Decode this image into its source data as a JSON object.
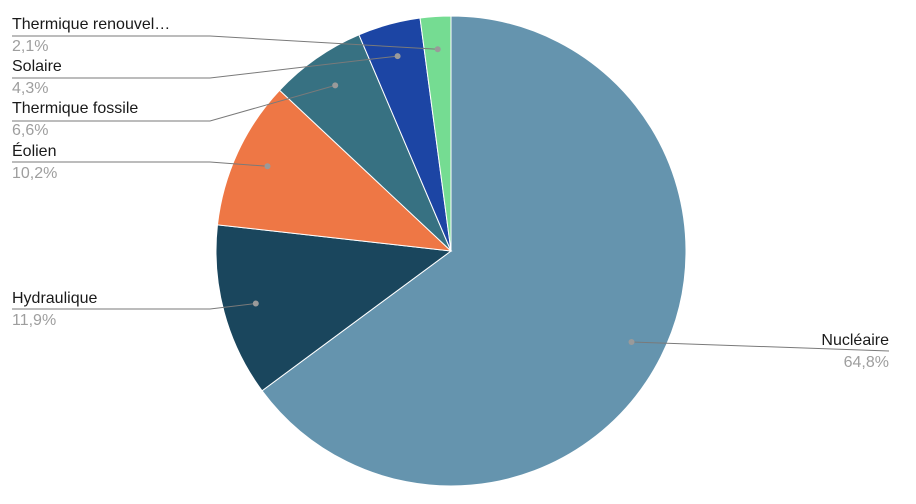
{
  "chart_data": {
    "type": "pie",
    "start_angle_deg": 0,
    "direction": "clockwise",
    "slices": [
      {
        "name": "Nucléaire",
        "value": 64.8,
        "label": "64,8%",
        "color": "#6594ae"
      },
      {
        "name": "Hydraulique",
        "value": 11.9,
        "label": "11,9%",
        "color": "#1a465d"
      },
      {
        "name": "Éolien",
        "value": 10.2,
        "label": "10,2%",
        "color": "#ee7745"
      },
      {
        "name": "Thermique fossile",
        "value": 6.6,
        "label": "6,6%",
        "color": "#377182"
      },
      {
        "name": "Solaire",
        "value": 4.3,
        "label": "4,3%",
        "color": "#1c45a4"
      },
      {
        "name": "Thermique renouvel…",
        "value": 2.1,
        "label": "2,1%",
        "color": "#75dc92"
      }
    ]
  }
}
